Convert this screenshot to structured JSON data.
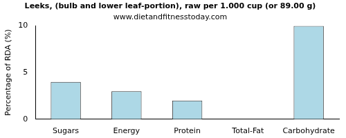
{
  "chart_data": {
    "type": "bar",
    "title": "Leeks, (bulb and lower leaf-portion), raw per 1.000 cup (or 89.00 g)",
    "subtitle": "www.dietandfitnesstoday.com",
    "y_label": "Percentage of RDA (%)",
    "categories": [
      "Sugars",
      "Energy",
      "Protein",
      "Total-Fat",
      "Carbohydrate"
    ],
    "values": [
      4,
      3,
      2,
      0,
      10
    ],
    "color": "#add8e6",
    "ylim": [
      0,
      10
    ],
    "yticks": [
      0,
      5,
      10
    ],
    "grid": false
  }
}
